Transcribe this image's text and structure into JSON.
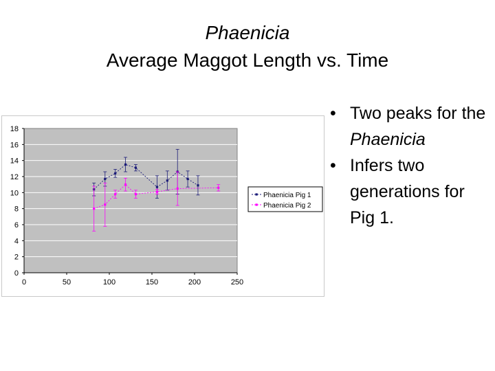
{
  "slide": {
    "title_line1": "Phaenicia",
    "title_line2": "Average Maggot Length vs. Time"
  },
  "bullets": [
    {
      "text_before": "Two peaks for the ",
      "text_italic": "Phaenicia",
      "text_after": ""
    },
    {
      "text_before": "Infers two generations for Pig 1.",
      "text_italic": "",
      "text_after": ""
    }
  ],
  "colors": {
    "plot_background": "#c0c0c0",
    "gridline": "#ffffff",
    "pig1": "#1a1a78",
    "pig2": "#ff00ff"
  },
  "chart_data": {
    "type": "scatter",
    "title": "",
    "xlabel": "",
    "ylabel": "",
    "xlim": [
      0,
      250
    ],
    "ylim": [
      0,
      18
    ],
    "x_ticks": [
      "0",
      "50",
      "100",
      "150",
      "200",
      "250"
    ],
    "y_ticks": [
      "0",
      "2",
      "4",
      "6",
      "8",
      "10",
      "12",
      "14",
      "16",
      "18"
    ],
    "grid": true,
    "legend_position": "right",
    "series": [
      {
        "name": "Phaenicia Pig 1",
        "x": [
          82,
          95,
          107,
          119,
          131,
          156,
          168,
          180,
          192,
          204
        ],
        "y": [
          10.4,
          11.7,
          12.4,
          13.5,
          13.1,
          10.7,
          11.5,
          12.6,
          11.7,
          10.9
        ],
        "err": [
          0.8,
          0.9,
          0.5,
          0.9,
          0.4,
          1.4,
          1.2,
          2.8,
          1.0,
          1.2
        ]
      },
      {
        "name": "Phaenicia Pig 2",
        "x": [
          82,
          95,
          107,
          119,
          131,
          156,
          180,
          228
        ],
        "y": [
          8.0,
          8.5,
          9.8,
          11.0,
          9.8,
          10.1,
          10.5,
          10.6
        ],
        "err": [
          2.8,
          2.7,
          0.5,
          0.8,
          0.5,
          0.3,
          2.1,
          0.4
        ]
      }
    ]
  }
}
